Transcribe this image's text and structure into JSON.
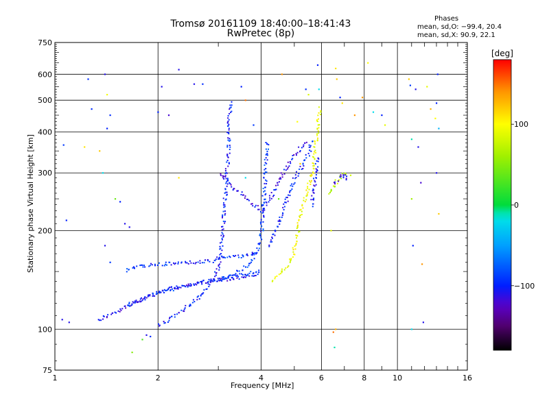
{
  "chart_data": {
    "type": "scatter",
    "title": "Tromsø 20161109 18:40:00–18:41:43",
    "subtitle": "RwPretec (8p)",
    "xlabel": "Frequency [MHz]",
    "ylabel": "Stationary phase Virtual Height [km]",
    "x_scale": "log",
    "y_scale": "log",
    "xlim": [
      1,
      16
    ],
    "ylim": [
      75,
      750
    ],
    "x_ticks": [
      1,
      2,
      4,
      6,
      8,
      10,
      16
    ],
    "x_tick_labels": [
      "1",
      "2",
      "4",
      "6",
      "8",
      "10",
      "16"
    ],
    "x_minor_ticks": [
      3,
      5,
      7,
      9,
      11,
      12,
      13,
      14,
      15
    ],
    "y_ticks": [
      75,
      100,
      200,
      300,
      400,
      500,
      600,
      750
    ],
    "y_tick_labels": [
      "75",
      "100",
      "200",
      "300",
      "400",
      "500",
      "600",
      "750"
    ],
    "grid": true,
    "phase_header": "Phases",
    "phase_line_o": "mean, sd,O: −99.4, 20.4",
    "phase_line_x": "mean, sd,X:  90.9, 22.1",
    "colorbar": {
      "label": "[deg]",
      "range": [
        -180,
        180
      ],
      "ticks": [
        100,
        0,
        -100
      ],
      "tick_labels": [
        "100",
        "0",
        "−100"
      ]
    },
    "traces": [
      {
        "phase": -110,
        "points": [
          [
            1.33,
            107
          ],
          [
            1.4,
            110
          ],
          [
            1.5,
            113
          ],
          [
            1.6,
            117
          ],
          [
            1.7,
            121
          ],
          [
            1.8,
            125
          ],
          [
            2.0,
            130
          ],
          [
            2.2,
            134
          ],
          [
            2.5,
            137
          ],
          [
            2.8,
            141
          ],
          [
            3.0,
            142
          ],
          [
            3.3,
            143
          ],
          [
            3.5,
            145
          ],
          [
            3.8,
            147
          ],
          [
            4.0,
            149
          ]
        ]
      },
      {
        "phase": -95,
        "points": [
          [
            1.6,
            118
          ],
          [
            1.8,
            124
          ],
          [
            2.0,
            130
          ],
          [
            2.3,
            135
          ],
          [
            2.6,
            139
          ],
          [
            2.9,
            142
          ],
          [
            3.2,
            145
          ],
          [
            3.6,
            148
          ],
          [
            3.95,
            152
          ]
        ]
      },
      {
        "phase": -95,
        "points": [
          [
            1.6,
            152
          ],
          [
            1.8,
            157
          ],
          [
            2.0,
            158
          ],
          [
            2.3,
            160
          ],
          [
            2.6,
            161
          ],
          [
            2.9,
            162
          ],
          [
            3.0,
            166
          ],
          [
            3.5,
            168
          ],
          [
            3.9,
            172
          ]
        ]
      },
      {
        "phase": -100,
        "points": [
          [
            2.0,
            103
          ],
          [
            2.2,
            110
          ],
          [
            2.5,
            120
          ],
          [
            2.7,
            130
          ],
          [
            2.85,
            140
          ],
          [
            3.0,
            155
          ],
          [
            3.05,
            180
          ],
          [
            3.1,
            220
          ],
          [
            3.15,
            280
          ],
          [
            3.2,
            350
          ],
          [
            3.2,
            420
          ],
          [
            3.25,
            500
          ]
        ]
      },
      {
        "phase": -90,
        "points": [
          [
            3.0,
            142
          ],
          [
            3.4,
            150
          ],
          [
            3.7,
            160
          ],
          [
            3.9,
            175
          ],
          [
            4.0,
            200
          ],
          [
            4.05,
            250
          ],
          [
            4.1,
            300
          ],
          [
            4.15,
            380
          ]
        ]
      },
      {
        "phase": -110,
        "points": [
          [
            3.0,
            300
          ],
          [
            3.2,
            280
          ],
          [
            3.5,
            260
          ],
          [
            3.8,
            240
          ],
          [
            4.0,
            230
          ],
          [
            4.3,
            260
          ],
          [
            4.6,
            300
          ],
          [
            5.0,
            340
          ],
          [
            5.4,
            380
          ]
        ]
      },
      {
        "phase": -100,
        "points": [
          [
            4.2,
            180
          ],
          [
            4.4,
            200
          ],
          [
            4.6,
            230
          ],
          [
            4.8,
            260
          ],
          [
            5.0,
            290
          ],
          [
            5.3,
            320
          ],
          [
            5.5,
            350
          ],
          [
            5.6,
            380
          ]
        ]
      },
      {
        "phase": 95,
        "points": [
          [
            4.3,
            142
          ],
          [
            4.5,
            148
          ],
          [
            4.7,
            155
          ],
          [
            4.9,
            165
          ],
          [
            5.0,
            180
          ],
          [
            5.1,
            200
          ],
          [
            5.2,
            230
          ],
          [
            5.4,
            260
          ],
          [
            5.6,
            300
          ],
          [
            5.8,
            400
          ],
          [
            5.9,
            480
          ]
        ]
      },
      {
        "phase": -105,
        "points": [
          [
            5.6,
            240
          ],
          [
            5.65,
            260
          ],
          [
            5.7,
            280
          ],
          [
            5.75,
            300
          ],
          [
            5.8,
            320
          ],
          [
            5.9,
            340
          ]
        ]
      },
      {
        "phase": 70,
        "points": [
          [
            6.3,
            260
          ],
          [
            6.5,
            275
          ],
          [
            6.7,
            290
          ],
          [
            6.9,
            300
          ],
          [
            7.1,
            305
          ]
        ]
      },
      {
        "phase": -110,
        "points": [
          [
            6.5,
            280
          ],
          [
            6.7,
            290
          ],
          [
            6.9,
            300
          ],
          [
            7.1,
            285
          ]
        ]
      }
    ],
    "scatter_points": [
      {
        "x": 1.05,
        "y": 107,
        "phase": -110
      },
      {
        "x": 1.1,
        "y": 105,
        "phase": -110
      },
      {
        "x": 1.08,
        "y": 215,
        "phase": -100
      },
      {
        "x": 1.06,
        "y": 365,
        "phase": -90
      },
      {
        "x": 1.22,
        "y": 360,
        "phase": 110
      },
      {
        "x": 1.25,
        "y": 580,
        "phase": -95
      },
      {
        "x": 1.28,
        "y": 470,
        "phase": -95
      },
      {
        "x": 1.35,
        "y": 350,
        "phase": 120
      },
      {
        "x": 1.4,
        "y": 600,
        "phase": -110
      },
      {
        "x": 1.42,
        "y": 520,
        "phase": 95
      },
      {
        "x": 1.45,
        "y": 450,
        "phase": -95
      },
      {
        "x": 1.42,
        "y": 410,
        "phase": -100
      },
      {
        "x": 1.38,
        "y": 300,
        "phase": -20
      },
      {
        "x": 1.4,
        "y": 180,
        "phase": -110
      },
      {
        "x": 1.45,
        "y": 160,
        "phase": -90
      },
      {
        "x": 1.5,
        "y": 250,
        "phase": 40
      },
      {
        "x": 1.55,
        "y": 245,
        "phase": -100
      },
      {
        "x": 1.6,
        "y": 210,
        "phase": -110
      },
      {
        "x": 1.65,
        "y": 205,
        "phase": -110
      },
      {
        "x": 1.68,
        "y": 85,
        "phase": 50
      },
      {
        "x": 1.8,
        "y": 93,
        "phase": 30
      },
      {
        "x": 1.85,
        "y": 96,
        "phase": -110
      },
      {
        "x": 1.9,
        "y": 95,
        "phase": -95
      },
      {
        "x": 2.0,
        "y": 460,
        "phase": -100
      },
      {
        "x": 2.05,
        "y": 550,
        "phase": -110
      },
      {
        "x": 2.15,
        "y": 450,
        "phase": -120
      },
      {
        "x": 2.3,
        "y": 620,
        "phase": -110
      },
      {
        "x": 2.3,
        "y": 290,
        "phase": 110
      },
      {
        "x": 2.55,
        "y": 560,
        "phase": -110
      },
      {
        "x": 2.7,
        "y": 560,
        "phase": -95
      },
      {
        "x": 3.5,
        "y": 550,
        "phase": -100
      },
      {
        "x": 3.6,
        "y": 500,
        "phase": 150
      },
      {
        "x": 3.8,
        "y": 420,
        "phase": -90
      },
      {
        "x": 4.6,
        "y": 600,
        "phase": 140
      },
      {
        "x": 5.1,
        "y": 430,
        "phase": 100
      },
      {
        "x": 5.4,
        "y": 540,
        "phase": -95
      },
      {
        "x": 5.5,
        "y": 520,
        "phase": 85
      },
      {
        "x": 5.85,
        "y": 640,
        "phase": -100
      },
      {
        "x": 5.9,
        "y": 540,
        "phase": -20
      },
      {
        "x": 6.4,
        "y": 200,
        "phase": 90
      },
      {
        "x": 6.5,
        "y": 98,
        "phase": 150
      },
      {
        "x": 6.55,
        "y": 88,
        "phase": -10
      },
      {
        "x": 6.6,
        "y": 625,
        "phase": 110
      },
      {
        "x": 6.65,
        "y": 580,
        "phase": 120
      },
      {
        "x": 6.8,
        "y": 510,
        "phase": -100
      },
      {
        "x": 6.9,
        "y": 490,
        "phase": 110
      },
      {
        "x": 7.3,
        "y": 295,
        "phase": 80
      },
      {
        "x": 7.5,
        "y": 450,
        "phase": 140
      },
      {
        "x": 7.9,
        "y": 510,
        "phase": 140
      },
      {
        "x": 8.2,
        "y": 650,
        "phase": 100
      },
      {
        "x": 8.5,
        "y": 460,
        "phase": -20
      },
      {
        "x": 9.0,
        "y": 450,
        "phase": -100
      },
      {
        "x": 9.2,
        "y": 420,
        "phase": 90
      },
      {
        "x": 10.8,
        "y": 580,
        "phase": 120
      },
      {
        "x": 10.9,
        "y": 555,
        "phase": -90
      },
      {
        "x": 11.0,
        "y": 380,
        "phase": -10
      },
      {
        "x": 11.0,
        "y": 250,
        "phase": 60
      },
      {
        "x": 11.1,
        "y": 180,
        "phase": -100
      },
      {
        "x": 11.3,
        "y": 540,
        "phase": -110
      },
      {
        "x": 11.5,
        "y": 360,
        "phase": -110
      },
      {
        "x": 11.7,
        "y": 280,
        "phase": -120
      },
      {
        "x": 11.8,
        "y": 158,
        "phase": 140
      },
      {
        "x": 11.9,
        "y": 105,
        "phase": -110
      },
      {
        "x": 12.2,
        "y": 550,
        "phase": 90
      },
      {
        "x": 12.5,
        "y": 470,
        "phase": 130
      },
      {
        "x": 12.9,
        "y": 440,
        "phase": 100
      },
      {
        "x": 13.1,
        "y": 600,
        "phase": -100
      },
      {
        "x": 13.0,
        "y": 490,
        "phase": -100
      },
      {
        "x": 13.2,
        "y": 410,
        "phase": -40
      },
      {
        "x": 13.0,
        "y": 300,
        "phase": -110
      },
      {
        "x": 13.2,
        "y": 225,
        "phase": 120
      },
      {
        "x": 11.0,
        "y": 100,
        "phase": -20
      },
      {
        "x": 6.6,
        "y": 100,
        "phase": 130
      },
      {
        "x": 3.6,
        "y": 290,
        "phase": -20
      },
      {
        "x": 4.5,
        "y": 250,
        "phase": 40
      },
      {
        "x": 5.2,
        "y": 320,
        "phase": 120
      }
    ]
  }
}
